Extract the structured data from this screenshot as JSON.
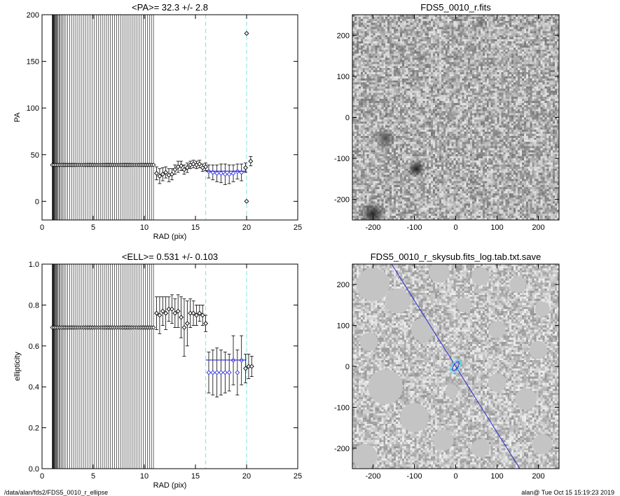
{
  "footer": {
    "path": "/data/alan/fds2/FDS5_0010_r_ellipse",
    "stamp": "alan@  Tue Oct 15 15:19:23 2019"
  },
  "colors": {
    "data_marker": "#000000",
    "fit_line": "#2a2ad8",
    "fit_marker": "#3030e0",
    "cutoff_line": "#7ee0e0",
    "ellipse": "#5ad8e0"
  },
  "chart_data": [
    {
      "type": "scatter",
      "title": "<PA>=  32.3 +/-   2.8",
      "xlabel": "RAD (pix)",
      "ylabel": "PA",
      "xlim": [
        0,
        25
      ],
      "ylim": [
        -20,
        200
      ],
      "xticks": [
        "0",
        "5",
        "10",
        "15",
        "20",
        "25"
      ],
      "yticks": [
        "0",
        "50",
        "100",
        "150",
        "200"
      ],
      "dense_band": {
        "x_from": 1.0,
        "x_to": 11.0,
        "value": 39
      },
      "points": [
        {
          "x": 11.2,
          "y": 30,
          "err": 7
        },
        {
          "x": 11.5,
          "y": 27,
          "err": 8
        },
        {
          "x": 11.8,
          "y": 29,
          "err": 7
        },
        {
          "x": 12.1,
          "y": 31,
          "err": 6
        },
        {
          "x": 12.4,
          "y": 28,
          "err": 7
        },
        {
          "x": 12.7,
          "y": 29,
          "err": 6
        },
        {
          "x": 13.0,
          "y": 34,
          "err": 5
        },
        {
          "x": 13.3,
          "y": 37,
          "err": 6
        },
        {
          "x": 13.6,
          "y": 38,
          "err": 5
        },
        {
          "x": 13.9,
          "y": 34,
          "err": 5
        },
        {
          "x": 14.2,
          "y": 36,
          "err": 5
        },
        {
          "x": 14.5,
          "y": 39,
          "err": 4
        },
        {
          "x": 14.8,
          "y": 40,
          "err": 4
        },
        {
          "x": 15.1,
          "y": 39,
          "err": 4
        },
        {
          "x": 15.4,
          "y": 40,
          "err": 4
        },
        {
          "x": 15.7,
          "y": 36,
          "err": 4
        },
        {
          "x": 16.0,
          "y": 37,
          "err": 4
        }
      ],
      "fit_points": [
        {
          "x": 16.3,
          "y": 32,
          "err": 7
        },
        {
          "x": 16.7,
          "y": 31,
          "err": 8
        },
        {
          "x": 17.1,
          "y": 30,
          "err": 9
        },
        {
          "x": 17.5,
          "y": 30,
          "err": 10
        },
        {
          "x": 17.9,
          "y": 29,
          "err": 11
        },
        {
          "x": 18.3,
          "y": 29,
          "err": 10
        },
        {
          "x": 18.7,
          "y": 30,
          "err": 9
        },
        {
          "x": 19.1,
          "y": 32,
          "err": 8
        },
        {
          "x": 19.5,
          "y": 31,
          "err": 9
        }
      ],
      "outliers": [
        {
          "x": 19.9,
          "y": 36,
          "err": 5
        },
        {
          "x": 20.0,
          "y": 180,
          "err": 0
        },
        {
          "x": 20.0,
          "y": 0,
          "err": 0
        },
        {
          "x": 20.4,
          "y": 43,
          "err": 5
        }
      ],
      "mean_line": {
        "value": 32.3,
        "x_from": 16,
        "x_to": 20
      },
      "cutoffs": [
        16,
        20
      ]
    },
    {
      "type": "image",
      "title": "FDS5_0010_r.fits",
      "xlim": [
        -250,
        250
      ],
      "ylim": [
        -250,
        250
      ],
      "xticks": [
        "-200",
        "-100",
        "0",
        "100",
        "200"
      ],
      "yticks": [
        "-200",
        "-100",
        "0",
        "100",
        "200"
      ],
      "sources": [
        {
          "x": -170,
          "y": -50,
          "r": 16,
          "b": 0.3
        },
        {
          "x": -95,
          "y": -125,
          "r": 14,
          "b": 0.12
        },
        {
          "x": -200,
          "y": -235,
          "r": 20,
          "b": 0.15
        },
        {
          "x": -130,
          "y": 165,
          "r": 8,
          "b": 0.45
        },
        {
          "x": -85,
          "y": 145,
          "r": 7,
          "b": 0.45
        },
        {
          "x": -25,
          "y": 215,
          "r": 6,
          "b": 0.5
        },
        {
          "x": 60,
          "y": 230,
          "r": 8,
          "b": 0.4
        },
        {
          "x": -10,
          "y": 5,
          "r": 9,
          "b": 0.55
        },
        {
          "x": 100,
          "y": -40,
          "r": 7,
          "b": 0.5
        },
        {
          "x": 160,
          "y": -70,
          "r": 6,
          "b": 0.5
        },
        {
          "x": 210,
          "y": -185,
          "r": 7,
          "b": 0.45
        },
        {
          "x": 40,
          "y": -195,
          "r": 6,
          "b": 0.5
        },
        {
          "x": -140,
          "y": 110,
          "r": 6,
          "b": 0.5
        },
        {
          "x": 30,
          "y": 120,
          "r": 5,
          "b": 0.55
        },
        {
          "x": 150,
          "y": 80,
          "r": 5,
          "b": 0.55
        }
      ]
    },
    {
      "type": "scatter",
      "title": "<ELL>= 0.531 +/-  0.103",
      "xlabel": "RAD (pix)",
      "ylabel": "ellipticity",
      "xlim": [
        0,
        25
      ],
      "ylim": [
        0,
        1
      ],
      "xticks": [
        "0",
        "5",
        "10",
        "15",
        "20",
        "25"
      ],
      "yticks": [
        "0.0",
        "0.2",
        "0.4",
        "0.6",
        "0.8",
        "1.0"
      ],
      "dense_band": {
        "x_from": 1.0,
        "x_to": 11.0,
        "value": 0.69
      },
      "points": [
        {
          "x": 11.2,
          "y": 0.76,
          "err": 0.08
        },
        {
          "x": 11.5,
          "y": 0.75,
          "err": 0.09
        },
        {
          "x": 11.8,
          "y": 0.77,
          "err": 0.07
        },
        {
          "x": 12.1,
          "y": 0.76,
          "err": 0.08
        },
        {
          "x": 12.4,
          "y": 0.78,
          "err": 0.06
        },
        {
          "x": 12.7,
          "y": 0.78,
          "err": 0.07
        },
        {
          "x": 13.0,
          "y": 0.76,
          "err": 0.07
        },
        {
          "x": 13.3,
          "y": 0.77,
          "err": 0.08
        },
        {
          "x": 13.6,
          "y": 0.74,
          "err": 0.1
        },
        {
          "x": 13.9,
          "y": 0.69,
          "err": 0.14
        },
        {
          "x": 14.2,
          "y": 0.71,
          "err": 0.11
        },
        {
          "x": 14.5,
          "y": 0.76,
          "err": 0.07
        },
        {
          "x": 14.8,
          "y": 0.76,
          "err": 0.06
        },
        {
          "x": 15.1,
          "y": 0.75,
          "err": 0.05
        },
        {
          "x": 15.4,
          "y": 0.76,
          "err": 0.04
        },
        {
          "x": 15.7,
          "y": 0.75,
          "err": 0.05
        },
        {
          "x": 16.0,
          "y": 0.71,
          "err": 0.04
        }
      ],
      "fit_points": [
        {
          "x": 16.3,
          "y": 0.47,
          "err": 0.1
        },
        {
          "x": 16.7,
          "y": 0.47,
          "err": 0.11
        },
        {
          "x": 17.1,
          "y": 0.47,
          "err": 0.12
        },
        {
          "x": 17.5,
          "y": 0.47,
          "err": 0.11
        },
        {
          "x": 17.9,
          "y": 0.47,
          "err": 0.1
        },
        {
          "x": 18.3,
          "y": 0.47,
          "err": 0.09
        },
        {
          "x": 18.7,
          "y": 0.53,
          "err": 0.12
        },
        {
          "x": 19.1,
          "y": 0.47,
          "err": 0.11
        },
        {
          "x": 19.5,
          "y": 0.53,
          "err": 0.12
        }
      ],
      "outliers": [
        {
          "x": 19.9,
          "y": 0.49,
          "err": 0.07
        },
        {
          "x": 20.2,
          "y": 0.5,
          "err": 0.06
        },
        {
          "x": 20.5,
          "y": 0.5,
          "err": 0.05
        }
      ],
      "mean_line": {
        "value": 0.531,
        "x_from": 16,
        "x_to": 20
      },
      "cutoffs": [
        16,
        20
      ]
    },
    {
      "type": "image",
      "title": "FDS5_0010_r_skysub.fits_log.tab.txt.save",
      "xlim": [
        -250,
        250
      ],
      "ylim": [
        -250,
        250
      ],
      "xticks": [
        "-200",
        "-100",
        "0",
        "100",
        "200"
      ],
      "yticks": [
        "-200",
        "-100",
        "0",
        "100",
        "200"
      ],
      "major_axis_line": {
        "x1": -155,
        "y1": 250,
        "x2": 155,
        "y2": -250
      },
      "ellipse": {
        "cx": 0,
        "cy": 0,
        "a": 18,
        "b": 9,
        "angle_deg": 32.3
      },
      "masks": [
        {
          "x": -200,
          "y": 200,
          "r": 40
        },
        {
          "x": -140,
          "y": 160,
          "r": 30
        },
        {
          "x": -40,
          "y": 230,
          "r": 25
        },
        {
          "x": 60,
          "y": 220,
          "r": 22
        },
        {
          "x": 150,
          "y": 200,
          "r": 20
        },
        {
          "x": 210,
          "y": 140,
          "r": 18
        },
        {
          "x": -210,
          "y": 60,
          "r": 22
        },
        {
          "x": -80,
          "y": 90,
          "r": 28
        },
        {
          "x": 100,
          "y": 90,
          "r": 20
        },
        {
          "x": 200,
          "y": 40,
          "r": 22
        },
        {
          "x": -170,
          "y": -50,
          "r": 42
        },
        {
          "x": -100,
          "y": -125,
          "r": 35
        },
        {
          "x": 100,
          "y": -40,
          "r": 22
        },
        {
          "x": 170,
          "y": -80,
          "r": 26
        },
        {
          "x": 210,
          "y": -190,
          "r": 24
        },
        {
          "x": -30,
          "y": -180,
          "r": 25
        },
        {
          "x": 60,
          "y": -200,
          "r": 22
        },
        {
          "x": -220,
          "y": -220,
          "r": 30
        },
        {
          "x": 20,
          "y": 150,
          "r": 18
        },
        {
          "x": -10,
          "y": -60,
          "r": 16
        }
      ]
    }
  ]
}
